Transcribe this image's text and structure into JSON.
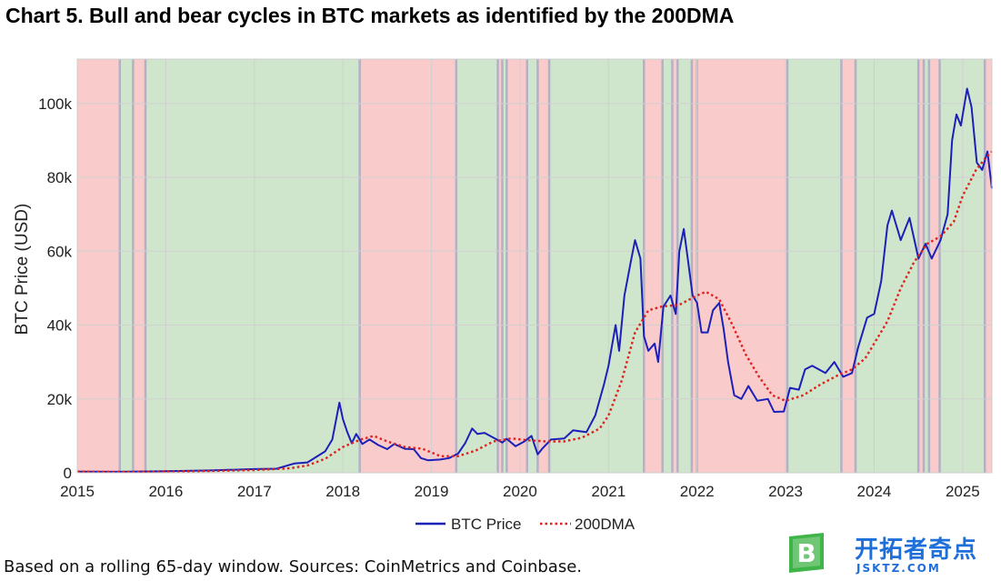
{
  "title": "Chart 5. Bull and bear cycles in BTC markets as identified by the 200DMA",
  "caption": "Based on a rolling 65-day window. Sources: CoinMetrics and Coinbase.",
  "watermark": {
    "text": "开拓者奇点",
    "subtext": "JSKTZ.COM",
    "logo_letter": "B"
  },
  "colors": {
    "bull_shade": "#cfe5cc",
    "bear_shade": "#f9cbcb",
    "switch_line": "#a7a9c2",
    "price_line": "#1c1fb8",
    "dma_line": "#e0201b",
    "grid": "#d0d0d0",
    "watermark": "#1e6fd9",
    "logo_green": "#3fb549"
  },
  "chart_data": {
    "type": "line",
    "xlabel": "",
    "ylabel": "BTC Price (USD)",
    "xlim": [
      2015.0,
      2025.33
    ],
    "ylim": [
      0,
      112000
    ],
    "x_ticks": [
      {
        "value": 2015,
        "label": "2015"
      },
      {
        "value": 2016,
        "label": "2016"
      },
      {
        "value": 2017,
        "label": "2017"
      },
      {
        "value": 2018,
        "label": "2018"
      },
      {
        "value": 2019,
        "label": "2019"
      },
      {
        "value": 2020,
        "label": "2020"
      },
      {
        "value": 2021,
        "label": "2021"
      },
      {
        "value": 2022,
        "label": "2022"
      },
      {
        "value": 2023,
        "label": "2023"
      },
      {
        "value": 2024,
        "label": "2024"
      },
      {
        "value": 2025,
        "label": "2025"
      }
    ],
    "y_ticks": [
      {
        "value": 0,
        "label": "0"
      },
      {
        "value": 20000,
        "label": "20k"
      },
      {
        "value": 40000,
        "label": "40k"
      },
      {
        "value": 60000,
        "label": "60k"
      },
      {
        "value": 80000,
        "label": "80k"
      },
      {
        "value": 100000,
        "label": "100k"
      }
    ],
    "grid": true,
    "legend": {
      "position": "bottom-center",
      "entries": [
        "BTC Price",
        "200DMA"
      ]
    },
    "regimes": [
      {
        "start": 2015.0,
        "end": 2015.48,
        "state": "bear"
      },
      {
        "start": 2015.48,
        "end": 2015.63,
        "state": "bull"
      },
      {
        "start": 2015.63,
        "end": 2015.77,
        "state": "bear"
      },
      {
        "start": 2015.77,
        "end": 2018.19,
        "state": "bull"
      },
      {
        "start": 2018.19,
        "end": 2019.28,
        "state": "bear"
      },
      {
        "start": 2019.28,
        "end": 2019.75,
        "state": "bull"
      },
      {
        "start": 2019.75,
        "end": 2019.8,
        "state": "bear"
      },
      {
        "start": 2019.8,
        "end": 2019.85,
        "state": "bull"
      },
      {
        "start": 2019.85,
        "end": 2020.08,
        "state": "bear"
      },
      {
        "start": 2020.08,
        "end": 2020.2,
        "state": "bull"
      },
      {
        "start": 2020.2,
        "end": 2020.33,
        "state": "bear"
      },
      {
        "start": 2020.33,
        "end": 2021.4,
        "state": "bull"
      },
      {
        "start": 2021.4,
        "end": 2021.61,
        "state": "bear"
      },
      {
        "start": 2021.61,
        "end": 2021.72,
        "state": "bull"
      },
      {
        "start": 2021.72,
        "end": 2021.78,
        "state": "bear"
      },
      {
        "start": 2021.78,
        "end": 2021.94,
        "state": "bull"
      },
      {
        "start": 2021.94,
        "end": 2022.0,
        "state": "bear"
      },
      {
        "start": 2022.0,
        "end": 2023.02,
        "state": "bear"
      },
      {
        "start": 2023.02,
        "end": 2023.63,
        "state": "bull"
      },
      {
        "start": 2023.63,
        "end": 2023.79,
        "state": "bear"
      },
      {
        "start": 2023.79,
        "end": 2024.5,
        "state": "bull"
      },
      {
        "start": 2024.5,
        "end": 2024.56,
        "state": "bear"
      },
      {
        "start": 2024.56,
        "end": 2024.62,
        "state": "bull"
      },
      {
        "start": 2024.62,
        "end": 2024.74,
        "state": "bear"
      },
      {
        "start": 2024.74,
        "end": 2025.25,
        "state": "bull"
      },
      {
        "start": 2025.25,
        "end": 2025.33,
        "state": "bear"
      }
    ],
    "series": [
      {
        "name": "BTC Price",
        "style": "solid",
        "points": [
          [
            2015.0,
            300
          ],
          [
            2015.5,
            260
          ],
          [
            2016.0,
            430
          ],
          [
            2016.5,
            650
          ],
          [
            2017.0,
            1000
          ],
          [
            2017.25,
            1100
          ],
          [
            2017.45,
            2500
          ],
          [
            2017.6,
            2800
          ],
          [
            2017.7,
            4300
          ],
          [
            2017.8,
            5800
          ],
          [
            2017.88,
            9000
          ],
          [
            2017.96,
            19000
          ],
          [
            2018.0,
            14500
          ],
          [
            2018.05,
            11000
          ],
          [
            2018.1,
            8000
          ],
          [
            2018.15,
            10500
          ],
          [
            2018.22,
            7800
          ],
          [
            2018.3,
            9000
          ],
          [
            2018.4,
            7500
          ],
          [
            2018.5,
            6400
          ],
          [
            2018.58,
            7800
          ],
          [
            2018.7,
            6500
          ],
          [
            2018.8,
            6400
          ],
          [
            2018.88,
            4000
          ],
          [
            2018.96,
            3400
          ],
          [
            2019.1,
            3600
          ],
          [
            2019.2,
            4000
          ],
          [
            2019.3,
            5200
          ],
          [
            2019.38,
            8000
          ],
          [
            2019.46,
            12000
          ],
          [
            2019.52,
            10500
          ],
          [
            2019.6,
            10800
          ],
          [
            2019.7,
            9500
          ],
          [
            2019.8,
            8200
          ],
          [
            2019.85,
            9200
          ],
          [
            2019.95,
            7200
          ],
          [
            2020.05,
            8500
          ],
          [
            2020.13,
            10000
          ],
          [
            2020.2,
            5000
          ],
          [
            2020.25,
            6500
          ],
          [
            2020.35,
            9000
          ],
          [
            2020.5,
            9300
          ],
          [
            2020.6,
            11500
          ],
          [
            2020.75,
            11000
          ],
          [
            2020.85,
            15500
          ],
          [
            2020.95,
            24000
          ],
          [
            2021.0,
            29000
          ],
          [
            2021.08,
            40000
          ],
          [
            2021.12,
            33000
          ],
          [
            2021.18,
            48000
          ],
          [
            2021.25,
            57000
          ],
          [
            2021.3,
            63000
          ],
          [
            2021.36,
            58000
          ],
          [
            2021.4,
            37000
          ],
          [
            2021.45,
            33000
          ],
          [
            2021.52,
            35000
          ],
          [
            2021.56,
            30000
          ],
          [
            2021.62,
            45000
          ],
          [
            2021.7,
            48000
          ],
          [
            2021.76,
            43000
          ],
          [
            2021.8,
            60000
          ],
          [
            2021.85,
            66000
          ],
          [
            2021.9,
            57000
          ],
          [
            2021.95,
            48000
          ],
          [
            2022.0,
            46000
          ],
          [
            2022.05,
            38000
          ],
          [
            2022.12,
            38000
          ],
          [
            2022.18,
            44000
          ],
          [
            2022.25,
            46000
          ],
          [
            2022.3,
            39000
          ],
          [
            2022.35,
            30000
          ],
          [
            2022.42,
            21000
          ],
          [
            2022.5,
            20000
          ],
          [
            2022.58,
            23500
          ],
          [
            2022.68,
            19500
          ],
          [
            2022.8,
            20000
          ],
          [
            2022.87,
            16500
          ],
          [
            2022.98,
            16600
          ],
          [
            2023.05,
            23000
          ],
          [
            2023.15,
            22500
          ],
          [
            2023.22,
            28000
          ],
          [
            2023.3,
            29000
          ],
          [
            2023.45,
            27000
          ],
          [
            2023.55,
            30000
          ],
          [
            2023.65,
            26000
          ],
          [
            2023.75,
            27000
          ],
          [
            2023.82,
            34000
          ],
          [
            2023.92,
            42000
          ],
          [
            2024.0,
            43000
          ],
          [
            2024.08,
            52000
          ],
          [
            2024.15,
            67000
          ],
          [
            2024.2,
            71000
          ],
          [
            2024.3,
            63000
          ],
          [
            2024.4,
            69000
          ],
          [
            2024.5,
            58000
          ],
          [
            2024.58,
            62000
          ],
          [
            2024.65,
            58000
          ],
          [
            2024.75,
            63000
          ],
          [
            2024.83,
            70000
          ],
          [
            2024.88,
            90000
          ],
          [
            2024.93,
            97000
          ],
          [
            2024.98,
            94000
          ],
          [
            2025.05,
            104000
          ],
          [
            2025.1,
            99000
          ],
          [
            2025.16,
            84000
          ],
          [
            2025.22,
            82000
          ],
          [
            2025.28,
            87000
          ],
          [
            2025.33,
            77000
          ]
        ]
      },
      {
        "name": "200DMA",
        "style": "dotted",
        "points": [
          [
            2015.0,
            350
          ],
          [
            2015.5,
            250
          ],
          [
            2016.0,
            350
          ],
          [
            2016.5,
            500
          ],
          [
            2017.0,
            750
          ],
          [
            2017.4,
            1200
          ],
          [
            2017.6,
            2000
          ],
          [
            2017.8,
            3800
          ],
          [
            2018.0,
            7000
          ],
          [
            2018.2,
            9000
          ],
          [
            2018.35,
            10000
          ],
          [
            2018.5,
            8500
          ],
          [
            2018.7,
            7000
          ],
          [
            2018.9,
            6500
          ],
          [
            2019.1,
            4500
          ],
          [
            2019.3,
            4500
          ],
          [
            2019.5,
            6000
          ],
          [
            2019.7,
            8500
          ],
          [
            2019.9,
            9300
          ],
          [
            2020.1,
            8800
          ],
          [
            2020.3,
            8500
          ],
          [
            2020.5,
            8500
          ],
          [
            2020.7,
            9500
          ],
          [
            2020.9,
            12000
          ],
          [
            2021.0,
            15500
          ],
          [
            2021.15,
            25000
          ],
          [
            2021.3,
            38000
          ],
          [
            2021.45,
            44000
          ],
          [
            2021.6,
            45000
          ],
          [
            2021.8,
            45500
          ],
          [
            2022.0,
            48000
          ],
          [
            2022.1,
            49000
          ],
          [
            2022.25,
            47000
          ],
          [
            2022.4,
            40000
          ],
          [
            2022.55,
            32000
          ],
          [
            2022.7,
            26000
          ],
          [
            2022.85,
            21000
          ],
          [
            2023.0,
            19500
          ],
          [
            2023.2,
            21000
          ],
          [
            2023.4,
            24000
          ],
          [
            2023.6,
            26500
          ],
          [
            2023.75,
            28000
          ],
          [
            2023.9,
            31000
          ],
          [
            2024.0,
            35000
          ],
          [
            2024.15,
            41000
          ],
          [
            2024.3,
            50000
          ],
          [
            2024.45,
            57000
          ],
          [
            2024.6,
            62000
          ],
          [
            2024.75,
            64000
          ],
          [
            2024.9,
            68000
          ],
          [
            2025.0,
            75000
          ],
          [
            2025.15,
            82000
          ],
          [
            2025.25,
            85000
          ],
          [
            2025.33,
            87000
          ]
        ]
      }
    ]
  }
}
